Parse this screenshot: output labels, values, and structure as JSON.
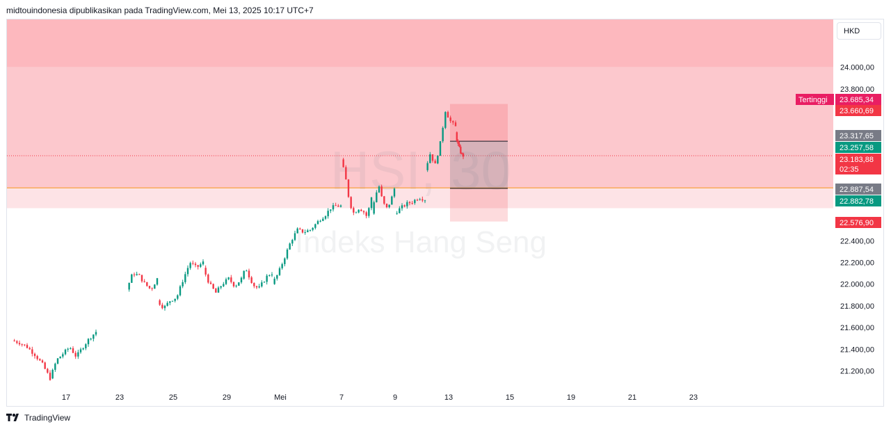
{
  "header": {
    "text": "midtouindonesia dipublikasikan pada TradingView.com, Mei 13, 2025 10:17 UTC+7"
  },
  "currency": "HKD",
  "footer": {
    "brand": "TradingView"
  },
  "watermark": {
    "symbol": "HSI, 30",
    "name": "Indeks Hang Seng"
  },
  "colors": {
    "up": "#089981",
    "down": "#f23645",
    "zone_dark": "#fdb8be",
    "zone_mid": "#fcc8cd",
    "zone_light": "#fde3e6",
    "orange_line": "#f7931a",
    "grid_text": "#131722"
  },
  "chart_data": {
    "type": "candlestick",
    "timeframe": "30",
    "currency": "HKD",
    "y_range": [
      21030,
      24440
    ],
    "y_ticks": [
      {
        "value": 24000,
        "label": "24.000,00"
      },
      {
        "value": 23800,
        "label": "23.800,00"
      },
      {
        "value": 22400,
        "label": "22.400,00"
      },
      {
        "value": 22200,
        "label": "22.200,00"
      },
      {
        "value": 22000,
        "label": "22.000,00"
      },
      {
        "value": 21800,
        "label": "21.800,00"
      },
      {
        "value": 21600,
        "label": "21.600,00"
      },
      {
        "value": 21400,
        "label": "21.400,00"
      },
      {
        "value": 21200,
        "label": "21.200,00"
      }
    ],
    "x_ticks": [
      {
        "slot": 6,
        "label": "17"
      },
      {
        "slot": 13,
        "label": "23"
      },
      {
        "slot": 20,
        "label": "25"
      },
      {
        "slot": 27,
        "label": "29"
      },
      {
        "slot": 34,
        "label": "Mei"
      },
      {
        "slot": 42,
        "label": "7"
      },
      {
        "slot": 49,
        "label": "9"
      },
      {
        "slot": 56,
        "label": "13"
      },
      {
        "slot": 64,
        "label": "15"
      },
      {
        "slot": 72,
        "label": "19"
      },
      {
        "slot": 80,
        "label": "21"
      },
      {
        "slot": 88,
        "label": "23"
      }
    ],
    "segments": [
      {
        "label": "17",
        "start": 21480,
        "end": 21130,
        "via": [
          21460,
          21420,
          21350,
          21260
        ]
      },
      {
        "label": "17b",
        "start": 21130,
        "end": 21560,
        "via": [
          21300,
          21360,
          21420,
          21330,
          21420,
          21500
        ]
      },
      {
        "label": "23",
        "start": 21950,
        "end": 22050,
        "via": [
          22100,
          22080,
          22000,
          21950
        ]
      },
      {
        "label": "25",
        "start": 21850,
        "end": 22200,
        "via": [
          21780,
          21850,
          21880,
          22050,
          22200,
          22150
        ]
      },
      {
        "label": "29",
        "start": 22150,
        "end": 22050,
        "via": [
          22000,
          21920,
          22000,
          22050,
          21980
        ]
      },
      {
        "label": "29b",
        "start": 22050,
        "end": 22100,
        "via": [
          22150,
          22050,
          21980,
          21960,
          22020,
          22080
        ]
      },
      {
        "label": "Mei",
        "start": 22000,
        "end": 22500,
        "via": [
          22100,
          22250,
          22400,
          22500,
          22480
        ]
      },
      {
        "label": "5",
        "start": 22500,
        "end": 22720,
        "via": [
          22550,
          22600,
          22640,
          22700,
          22720
        ]
      },
      {
        "label": "7",
        "start": 23150,
        "end": 22800,
        "via": [
          23000,
          22750,
          22650,
          22700,
          22680,
          22620
        ]
      },
      {
        "label": "8",
        "start": 22650,
        "end": 22880,
        "via": [
          22820,
          22900,
          22750,
          22700,
          22760
        ]
      },
      {
        "label": "9",
        "start": 22650,
        "end": 22780,
        "via": [
          22700,
          22740,
          22760,
          22800
        ]
      },
      {
        "label": "12",
        "start": 23050,
        "end": 23450,
        "via": [
          23200,
          23100,
          23300,
          23600,
          23500
        ]
      },
      {
        "label": "13",
        "start": 23400,
        "end": 23184,
        "via": [
          23300,
          23250,
          23200
        ]
      }
    ],
    "last_price": 23183.88,
    "session_high": 23685.34,
    "lines": [
      {
        "value": 22887.54,
        "color": "#f7931a",
        "style": "solid"
      },
      {
        "value": 23183.88,
        "color": "#f23645",
        "style": "dotted"
      }
    ],
    "zones": [
      {
        "from": 24000,
        "to": 24440,
        "color": "#fdb8be"
      },
      {
        "from": 22887.54,
        "to": 24000,
        "color": "#fcc8cd"
      },
      {
        "from": 22700,
        "to": 22887.54,
        "color": "#fde3e6"
      }
    ],
    "position_box": {
      "slot_from": 56,
      "slot_to": 62,
      "top": 23660.69,
      "entry": 23257.58,
      "bottom": 22576.9,
      "stop_line": 23317.65,
      "target_line": 22882.78
    },
    "price_labels": [
      {
        "value": 23685.34,
        "text": "23.685,34",
        "tag": "Tertinggi",
        "color": "#e91e63"
      },
      {
        "value": 23660.69,
        "text": "23.660,69",
        "color": "#f23645"
      },
      {
        "value": 23317.65,
        "text": "23.317,65",
        "color": "#787b86"
      },
      {
        "value": 23257.58,
        "text": "23.257,58",
        "color": "#089981"
      },
      {
        "value": 23183.88,
        "text": "23.183,88",
        "sub": "02:35",
        "color": "#f23645"
      },
      {
        "value": 22887.54,
        "text": "22.887,54",
        "color": "#787b86"
      },
      {
        "value": 22882.78,
        "text": "22.882,78",
        "color": "#089981"
      },
      {
        "value": 22576.9,
        "text": "22.576,90",
        "color": "#f23645"
      }
    ]
  }
}
